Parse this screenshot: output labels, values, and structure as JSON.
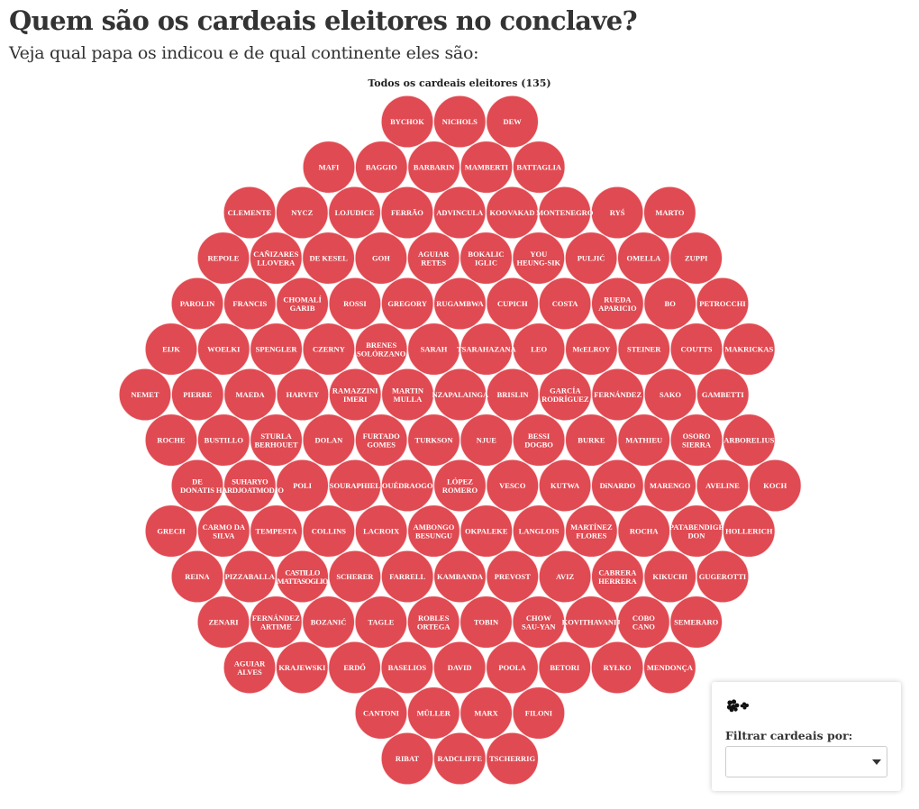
{
  "header": {
    "title": "Quem são os cardeais eleitores no conclave?",
    "subtitle": "Veja qual papa os indicou e de qual continente eles são:"
  },
  "chart_data": {
    "type": "bubble-grid",
    "title": "Todos os cardeais eleitores (135)",
    "bubble_color": "#e04a52",
    "label_color": "#ffffff",
    "rows": [
      [
        "BYCHOK",
        "NICHOLS",
        "DEW"
      ],
      [
        "MAFI",
        "BAGGIO",
        "BARBARIN",
        "MAMBERTI",
        "BATTAGLIA"
      ],
      [
        "CLEMENTE",
        "NYCZ",
        "LOJUDICE",
        "FERRÃO",
        "ADVINCULA",
        "KOOVAKAD",
        "MONTENEGRO",
        "RYŚ",
        "MARTO"
      ],
      [
        "REPOLE",
        "CAÑIZARES LLOVERA",
        "DE KESEL",
        "GOH",
        "AGUIAR RETES",
        "BOKALIC IGLIC",
        "YOU HEUNG-SIK",
        "PULJIĆ",
        "OMELLA",
        "ZUPPI"
      ],
      [
        "PAROLIN",
        "FRANCIS",
        "CHOMALÍ GARIB",
        "ROSSI",
        "GREGORY",
        "RUGAMBWA",
        "CUPICH",
        "COSTA",
        "RUEDA APARICIO",
        "BO",
        "PETROCCHI"
      ],
      [
        "EIJK",
        "WOELKI",
        "SPENGLER",
        "CZERNY",
        "BRENES SOLÓRZANO",
        "SARAH",
        "TSARAHAZANA",
        "LEO",
        "McELROY",
        "STEINER",
        "COUTTS",
        "MAKRICKAS"
      ],
      [
        "NEMET",
        "PIERRE",
        "MAEDA",
        "HARVEY",
        "RAMAZZINI IMERI",
        "MARTIN MULLA",
        "NZAPALAINGA",
        "BRISLIN",
        "GARCÍA RODRÍGUEZ",
        "FERNÁNDEZ",
        "SAKO",
        "GAMBETTI"
      ],
      [
        "ROCHE",
        "BUSTILLO",
        "STURLA BERHOUET",
        "DOLAN",
        "FURTADO GOMES",
        "TURKSON",
        "NJUE",
        "BESSI DOGBO",
        "BURKE",
        "MATHIEU",
        "OSORO SIERRA",
        "ARBORELIUS"
      ],
      [
        "DE DONATIS",
        "SUHARYO HARDJOATMODJO",
        "POLI",
        "SOURAPHIEL",
        "OUÉDRAOGO",
        "LÓPEZ ROMERO",
        "VESCO",
        "KUTWA",
        "DiNARDO",
        "MARENGO",
        "AVELINE",
        "KOCH"
      ],
      [
        "GRECH",
        "CARMO DA SILVA",
        "TEMPESTA",
        "COLLINS",
        "LACROIX",
        "AMBONGO BESUNGU",
        "OKPALEKE",
        "LANGLOIS",
        "MARTÍNEZ FLORES",
        "ROCHA",
        "PATABENDIGE DON",
        "HOLLERICH"
      ],
      [
        "REINA",
        "PIZZABALLA",
        "CASTILLO MATTASOGLIO",
        "SCHERER",
        "FARRELL",
        "KAMBANDA",
        "PREVOST",
        "AVIZ",
        "CABRERA HERRERA",
        "KIKUCHI",
        "GUGEROTTI"
      ],
      [
        "ZENARI",
        "FERNÁNDEZ ARTIME",
        "BOZANIĆ",
        "TAGLE",
        "ROBLES ORTEGA",
        "TOBIN",
        "CHOW SAU-YAN",
        "KOVITHAVANIJ",
        "COBO CANO",
        "SEMERARO"
      ],
      [
        "AGUIAR ALVES",
        "KRAJEWSKI",
        "ERDŐ",
        "BASELIOS",
        "DAVID",
        "POOLA",
        "BETORI",
        "RYŁKO",
        "MENDONÇA"
      ],
      [
        "CANTONI",
        "MÜLLER",
        "MARX",
        "FILONI"
      ],
      [
        "RIBAT",
        "RADCLIFFE",
        "TSCHERRIG"
      ]
    ]
  },
  "filter_panel": {
    "icon": "bubbles-cluster-icon",
    "label": "Filtrar cardeais por:",
    "selected_value": ""
  }
}
